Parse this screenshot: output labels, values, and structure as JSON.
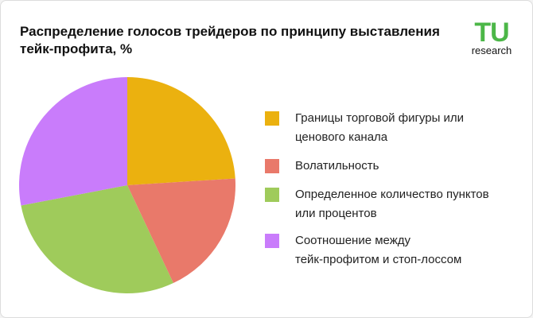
{
  "chart_data": {
    "type": "pie",
    "title": "Распределение голосов трейдеров по принципу выставления\nтейк-профита, %",
    "logo": {
      "mark": "TU",
      "text": "research"
    },
    "categories": [
      "Границы торговой фигуры или\nценового канала",
      "Волатильность",
      "Определенное количество пунктов\nили процентов",
      "Соотношение между\nтейк-профитом и стоп-лоссом"
    ],
    "values": [
      24,
      19,
      29,
      28
    ],
    "colors": [
      "#ebb10f",
      "#e9796a",
      "#9fcb5b",
      "#c97cfb"
    ],
    "legend": "right"
  }
}
